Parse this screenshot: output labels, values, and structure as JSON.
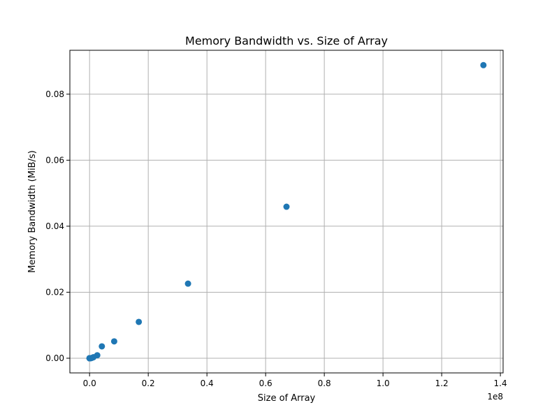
{
  "chart_data": {
    "type": "scatter",
    "title": "Memory Bandwidth vs. Size of Array",
    "xlabel": "Size of Array",
    "ylabel": "Memory Bandwidth (MiB/s)",
    "x_offset_label": "1e8",
    "xlim": [
      -0.06711,
      1.40929
    ],
    "ylim": [
      -0.00445,
      0.0933
    ],
    "xticks": [
      0.0,
      0.2,
      0.4,
      0.6,
      0.8,
      1.0,
      1.2,
      1.4
    ],
    "xtick_labels": [
      "0.0",
      "0.2",
      "0.4",
      "0.6",
      "0.8",
      "1.0",
      "1.2",
      "1.4"
    ],
    "yticks": [
      0.0,
      0.02,
      0.04,
      0.06,
      0.08
    ],
    "ytick_labels": [
      "0.00",
      "0.02",
      "0.04",
      "0.06",
      "0.08"
    ],
    "grid": true,
    "colors": {
      "marker": "#1f77b4",
      "grid": "#b0b0b0",
      "axes": "#000000"
    },
    "series": [
      {
        "x": [
          0.0,
          1e-05,
          2e-05,
          5e-05,
          0.0001,
          0.0002,
          0.0005,
          0.001,
          0.002,
          0.004,
          0.008,
          0.0131,
          0.0262,
          0.0419,
          0.0839,
          0.1678,
          0.3355,
          0.6711,
          1.3422
        ],
        "y": [
          0.0,
          0.0,
          0.0,
          0.0,
          0.0,
          0.0,
          0.0,
          0.0,
          0.0,
          0.0,
          0.0001,
          0.0003,
          0.0009,
          0.0036,
          0.0051,
          0.011,
          0.0226,
          0.0459,
          0.0888
        ]
      }
    ]
  }
}
